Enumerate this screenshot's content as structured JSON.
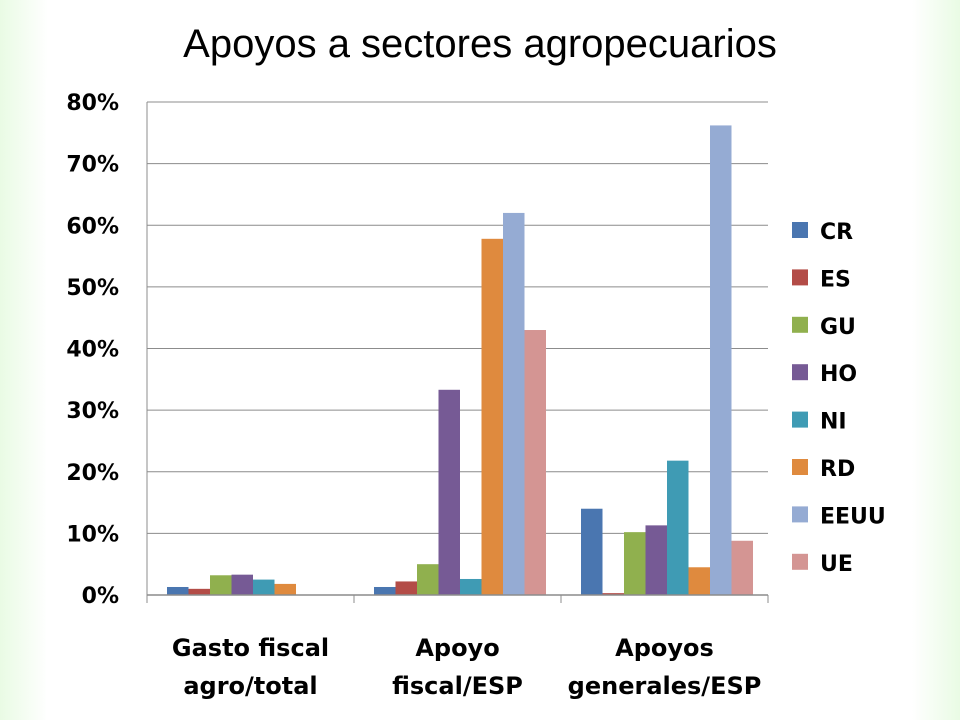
{
  "title": "Apoyos a sectores agropecuarios",
  "chart_data": {
    "type": "bar",
    "title": "Apoyos a sectores agropecuarios",
    "xlabel": "",
    "ylabel": "",
    "ylim": [
      0,
      80
    ],
    "yticks": [
      "0%",
      "10%",
      "20%",
      "30%",
      "40%",
      "50%",
      "60%",
      "70%",
      "80%"
    ],
    "grid": true,
    "legend_position": "right",
    "categories": [
      [
        "Gasto fiscal",
        "agro/total"
      ],
      [
        "Apoyo",
        "fiscal/ESP"
      ],
      [
        "Apoyos",
        "generales/ESP"
      ]
    ],
    "series": [
      {
        "name": "CR",
        "color": "#4a76b0",
        "values": [
          1.3,
          1.3,
          14.0
        ]
      },
      {
        "name": "ES",
        "color": "#b34c47",
        "values": [
          1.0,
          2.2,
          0.3
        ]
      },
      {
        "name": "GU",
        "color": "#90b04e",
        "values": [
          3.2,
          5.0,
          10.2
        ]
      },
      {
        "name": "HO",
        "color": "#765a95",
        "values": [
          3.3,
          33.3,
          11.3
        ]
      },
      {
        "name": "NI",
        "color": "#3f9bb4",
        "values": [
          2.5,
          2.6,
          21.8
        ]
      },
      {
        "name": "RD",
        "color": "#df8a3e",
        "values": [
          1.8,
          57.8,
          4.5
        ]
      },
      {
        "name": "EEUU",
        "color": "#95abd3",
        "values": [
          0,
          62.0,
          76.2
        ]
      },
      {
        "name": "UE",
        "color": "#d49593",
        "values": [
          0,
          43.0,
          8.8
        ]
      }
    ]
  }
}
